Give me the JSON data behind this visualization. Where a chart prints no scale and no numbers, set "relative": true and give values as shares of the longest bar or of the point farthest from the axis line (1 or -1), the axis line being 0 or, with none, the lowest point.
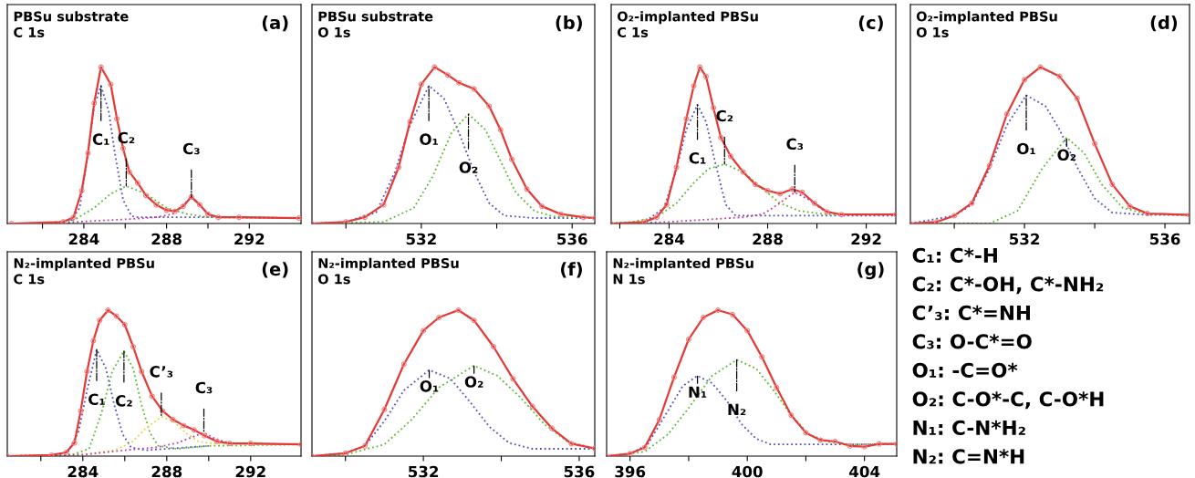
{
  "chart_data": [
    {
      "type": "line",
      "relative": true,
      "title": "PBSu substrate",
      "subtitle": "C 1s",
      "tick_labels": "x",
      "xlim": [
        280.3,
        294.5
      ],
      "xticks": [
        {
          "value": 282,
          "label": null
        },
        284,
        {
          "value": 286,
          "label": null
        },
        288,
        {
          "value": 290,
          "label": null
        },
        292
      ],
      "annotations": [
        "(a)",
        {
          "text": "C₁",
          "x": 284.83,
          "y": 0.88
        },
        {
          "text": "C₂",
          "x": 286.05,
          "y": 0.24
        },
        {
          "text": "C₃",
          "x": 289.2,
          "y": 0.17
        }
      ],
      "series": [
        {
          "color": "#e53935",
          "marker": "circle",
          "line_style": "solid",
          "x": [
            280.5,
            283,
            283.5,
            283.9,
            284.2,
            284.5,
            284.83,
            285.3,
            285.6,
            285.9,
            286.2,
            286.6,
            287,
            287.5,
            288,
            288.4,
            288.8,
            289.2,
            289.6,
            290,
            290.5,
            291.5,
            294.4
          ],
          "values": [
            0,
            0.01,
            0.04,
            0.21,
            0.45,
            0.77,
            1.0,
            0.89,
            0.67,
            0.48,
            0.33,
            0.26,
            0.18,
            0.12,
            0.085,
            0.078,
            0.11,
            0.17,
            0.12,
            0.06,
            0.04,
            0.04,
            0.035
          ]
        },
        {
          "color": "#5050c8",
          "marker": "none",
          "line_style": "dotted",
          "x": [
            280.5,
            283.3,
            283.8,
            284.2,
            284.5,
            284.83,
            285.2,
            285.5,
            285.9,
            286.3,
            286.5,
            290,
            294.4
          ],
          "values": [
            0,
            0,
            0.1,
            0.45,
            0.75,
            0.88,
            0.72,
            0.45,
            0.15,
            0.05,
            0.04,
            0.04,
            0.035
          ]
        },
        {
          "color": "#5cb82e",
          "marker": "none",
          "line_style": "dotted",
          "x": [
            280.5,
            282,
            283.5,
            284.5,
            285.3,
            286.05,
            287,
            288,
            289,
            290,
            294.4
          ],
          "values": [
            0,
            0,
            0.02,
            0.1,
            0.19,
            0.24,
            0.19,
            0.1,
            0.06,
            0.04,
            0.035
          ]
        },
        {
          "color": "#c83ca8",
          "marker": "none",
          "line_style": "dotted",
          "x": [
            280.5,
            283,
            285,
            286.5,
            287.5,
            288.3,
            288.8,
            289.2,
            289.6,
            290.1,
            291,
            294.4
          ],
          "values": [
            0,
            0.005,
            0.02,
            0.03,
            0.04,
            0.06,
            0.12,
            0.17,
            0.12,
            0.05,
            0.04,
            0.035
          ]
        }
      ]
    },
    {
      "type": "line",
      "relative": true,
      "title": "PBSu substrate",
      "subtitle": "O 1s",
      "tick_labels": "x",
      "xlim": [
        529.1,
        536.6
      ],
      "xticks": [
        {
          "value": 530,
          "label": null
        },
        532,
        {
          "value": 534,
          "label": null
        },
        536
      ],
      "annotations": [
        "(b)",
        {
          "text": "O₁",
          "x": 532.2,
          "y": 0.88
        },
        {
          "text": "O₂",
          "x": 533.25,
          "y": 0.7
        }
      ],
      "series": [
        {
          "color": "#e53935",
          "marker": "circle",
          "line_style": "solid",
          "x": [
            529.1,
            530,
            530.5,
            531,
            531.4,
            531.7,
            532,
            532.35,
            532.7,
            533,
            533.4,
            533.8,
            534.1,
            534.4,
            534.8,
            535.2,
            535.7,
            536.3,
            536.6
          ],
          "values": [
            0,
            0.01,
            0.04,
            0.12,
            0.36,
            0.65,
            0.89,
            1.0,
            0.95,
            0.9,
            0.86,
            0.75,
            0.6,
            0.41,
            0.22,
            0.11,
            0.06,
            0.04,
            0.035
          ]
        },
        {
          "color": "#5050c8",
          "marker": "none",
          "line_style": "dotted",
          "x": [
            529.1,
            530,
            530.8,
            531.3,
            531.7,
            532.2,
            532.6,
            533,
            533.4,
            533.8,
            534.2,
            535,
            536.6
          ],
          "values": [
            0,
            0.01,
            0.07,
            0.33,
            0.63,
            0.88,
            0.8,
            0.58,
            0.33,
            0.13,
            0.05,
            0.035,
            0.035
          ]
        },
        {
          "color": "#5cb82e",
          "marker": "none",
          "line_style": "dotted",
          "x": [
            529.1,
            531,
            531.8,
            532.3,
            532.8,
            533.25,
            533.7,
            534.1,
            534.5,
            535,
            535.5,
            536.6
          ],
          "values": [
            0,
            0.01,
            0.1,
            0.3,
            0.58,
            0.7,
            0.6,
            0.4,
            0.2,
            0.08,
            0.045,
            0.035
          ]
        }
      ]
    },
    {
      "type": "line",
      "relative": true,
      "title": "O₂-implanted PBSu",
      "subtitle": "C 1s",
      "tick_labels": "x",
      "xlim": [
        281.65,
        293.2
      ],
      "xticks": [
        {
          "value": 282,
          "label": null
        },
        284,
        {
          "value": 286,
          "label": null
        },
        288,
        {
          "value": 290,
          "label": null
        },
        292
      ],
      "annotations": [
        "(c)",
        {
          "text": "C₁",
          "x": 285.15,
          "y": 0.76
        },
        {
          "text": "C₂",
          "x": 286.25,
          "y": 0.38
        },
        {
          "text": "C₃",
          "x": 289.1,
          "y": 0.2
        }
      ],
      "series": [
        {
          "color": "#e53935",
          "marker": "circle",
          "line_style": "solid",
          "x": [
            281.65,
            283,
            283.5,
            283.9,
            284.3,
            284.7,
            285,
            285.25,
            285.5,
            285.8,
            286.1,
            286.5,
            287,
            287.5,
            288,
            288.5,
            289,
            289.4,
            289.9,
            290.4,
            291,
            293.2
          ],
          "values": [
            0,
            0.01,
            0.04,
            0.12,
            0.36,
            0.67,
            0.88,
            1.0,
            0.94,
            0.74,
            0.55,
            0.43,
            0.33,
            0.25,
            0.21,
            0.19,
            0.22,
            0.2,
            0.13,
            0.075,
            0.057,
            0.057
          ]
        },
        {
          "color": "#5050c8",
          "marker": "none",
          "line_style": "dotted",
          "x": [
            281.65,
            283,
            283.8,
            284.3,
            284.7,
            285.15,
            285.5,
            285.9,
            286.3,
            286.7,
            287.5,
            293.2
          ],
          "values": [
            0,
            0.01,
            0.1,
            0.35,
            0.6,
            0.76,
            0.65,
            0.37,
            0.12,
            0.05,
            0.05,
            0.05
          ]
        },
        {
          "color": "#5cb82e",
          "marker": "none",
          "line_style": "dotted",
          "x": [
            281.65,
            282.5,
            283.5,
            284.3,
            285,
            285.6,
            286.25,
            287,
            287.8,
            288.5,
            289.3,
            290.3,
            293.2
          ],
          "values": [
            0,
            0.01,
            0.04,
            0.13,
            0.26,
            0.35,
            0.38,
            0.33,
            0.22,
            0.13,
            0.08,
            0.06,
            0.057
          ]
        },
        {
          "color": "#c83ca8",
          "marker": "none",
          "line_style": "dotted",
          "x": [
            281.65,
            284,
            286,
            287,
            287.8,
            288.4,
            289.1,
            289.7,
            290.3
          ],
          "values": [
            0,
            0.01,
            0.03,
            0.04,
            0.06,
            0.12,
            0.2,
            0.15,
            0.08
          ]
        }
      ]
    },
    {
      "type": "line",
      "relative": true,
      "title": "O₂-implanted PBSu",
      "subtitle": "O 1s",
      "tick_labels": "x",
      "xlim": [
        528.75,
        536.7
      ],
      "xticks": [
        {
          "value": 530,
          "label": null
        },
        532,
        {
          "value": 534,
          "label": null
        },
        536
      ],
      "annotations": [
        "(d)",
        {
          "text": "O₁",
          "x": 532.05,
          "y": 0.82
        },
        {
          "text": "O₂",
          "x": 533.2,
          "y": 0.55
        }
      ],
      "series": [
        {
          "color": "#e53935",
          "marker": "circle",
          "line_style": "solid",
          "x": [
            528.75,
            529.5,
            530,
            530.5,
            531,
            531.5,
            532,
            532.45,
            533,
            533.5,
            534,
            534.5,
            535,
            535.5,
            536.7
          ],
          "values": [
            0,
            0.01,
            0.05,
            0.13,
            0.37,
            0.7,
            0.92,
            1.0,
            0.94,
            0.8,
            0.51,
            0.25,
            0.11,
            0.064,
            0.055
          ]
        },
        {
          "color": "#5050c8",
          "marker": "none",
          "line_style": "dotted",
          "x": [
            528.75,
            530,
            530.5,
            531,
            531.5,
            532.05,
            532.6,
            533,
            533.5,
            534,
            534.5,
            535.5,
            536.7
          ],
          "values": [
            0,
            0.05,
            0.12,
            0.35,
            0.63,
            0.82,
            0.75,
            0.6,
            0.36,
            0.16,
            0.07,
            0.055,
            0.055
          ]
        },
        {
          "color": "#5cb82e",
          "marker": "none",
          "line_style": "dotted",
          "x": [
            528.75,
            531,
            531.8,
            532.5,
            533.2,
            533.7,
            534.2,
            534.8,
            535.5,
            536.7
          ],
          "values": [
            0,
            0,
            0.08,
            0.35,
            0.55,
            0.45,
            0.25,
            0.1,
            0.06,
            0.055
          ]
        }
      ]
    },
    {
      "type": "line",
      "relative": true,
      "title": "N₂-implanted PBSu",
      "subtitle": "C 1s",
      "tick_labels": "x",
      "xlim": [
        280.4,
        294.4
      ],
      "xticks": [
        {
          "value": 282,
          "label": null
        },
        284,
        {
          "value": 286,
          "label": null
        },
        288,
        {
          "value": 290,
          "label": null
        },
        292
      ],
      "annotations": [
        "(e)",
        {
          "text": "C₁",
          "x": 284.66,
          "y": 0.73
        },
        {
          "text": "C₂",
          "x": 285.96,
          "y": 0.72
        },
        {
          "text": "C’₃",
          "x": 287.74,
          "y": 0.27
        },
        {
          "text": "C₃",
          "x": 289.77,
          "y": 0.16
        }
      ],
      "series": [
        {
          "color": "#e53935",
          "marker": "circle",
          "line_style": "solid",
          "x": [
            280.4,
            282.5,
            283.2,
            283.6,
            283.9,
            284.2,
            284.5,
            284.8,
            285.2,
            285.6,
            286,
            286.4,
            286.8,
            287.3,
            287.8,
            288.3,
            288.8,
            289.3,
            289.8,
            290.4,
            291,
            292,
            294.4
          ],
          "values": [
            0,
            0.007,
            0.025,
            0.09,
            0.31,
            0.58,
            0.79,
            0.93,
            1.0,
            0.96,
            0.9,
            0.75,
            0.58,
            0.41,
            0.31,
            0.25,
            0.21,
            0.18,
            0.14,
            0.1,
            0.087,
            0.087,
            0.08
          ]
        },
        {
          "color": "#5050c8",
          "marker": "none",
          "line_style": "dotted",
          "x": [
            280.4,
            282.5,
            283.3,
            283.8,
            284.2,
            284.66,
            285.1,
            285.5,
            285.9,
            286.3,
            287,
            288,
            289,
            290
          ],
          "values": [
            0,
            0.005,
            0.03,
            0.17,
            0.45,
            0.73,
            0.6,
            0.35,
            0.15,
            0.06,
            0.04,
            0.05,
            0.06,
            0.07
          ]
        },
        {
          "color": "#5cb82e",
          "marker": "none",
          "line_style": "dotted",
          "x": [
            280.4,
            283.5,
            284.3,
            284.9,
            285.4,
            285.96,
            286.4,
            286.8,
            287.2,
            287.6,
            288.5,
            290,
            294.4
          ],
          "values": [
            0,
            0.01,
            0.05,
            0.3,
            0.58,
            0.72,
            0.6,
            0.35,
            0.16,
            0.07,
            0.05,
            0.07,
            0.08
          ]
        },
        {
          "color": "#e6d43a",
          "marker": "none",
          "line_style": "dotted",
          "x": [
            280.4,
            284,
            285.5,
            286.3,
            287,
            287.74,
            288.3,
            288.9,
            289.5,
            290.3,
            294.4
          ],
          "values": [
            0,
            0.01,
            0.04,
            0.09,
            0.19,
            0.27,
            0.24,
            0.16,
            0.1,
            0.085,
            0.08
          ]
        },
        {
          "color": "#c83ca8",
          "marker": "none",
          "line_style": "dotted",
          "x": [
            280.4,
            284,
            286,
            287.5,
            288.5,
            289.2,
            289.77,
            290.3,
            291,
            294.4
          ],
          "values": [
            0,
            0.01,
            0.04,
            0.06,
            0.09,
            0.13,
            0.16,
            0.12,
            0.087,
            0.08
          ]
        }
      ]
    },
    {
      "type": "line",
      "relative": true,
      "title": "N₂-implanted PBSu",
      "subtitle": "O 1s",
      "tick_labels": "x",
      "xlim": [
        529.14,
        536.4
      ],
      "xticks": [
        {
          "value": 530,
          "label": null
        },
        532,
        {
          "value": 534,
          "label": null
        },
        536
      ],
      "annotations": [
        "(f)",
        {
          "text": "O₁",
          "x": 532.15,
          "y": 0.59
        },
        {
          "text": "O₂",
          "x": 533.3,
          "y": 0.62
        }
      ],
      "series": [
        {
          "color": "#e53935",
          "marker": "circle",
          "line_style": "solid",
          "x": [
            529.14,
            530,
            530.5,
            531,
            531.5,
            532,
            532.4,
            532.9,
            533.3,
            533.8,
            534.3,
            534.8,
            535.3,
            535.8,
            536.4
          ],
          "values": [
            0,
            0.02,
            0.07,
            0.32,
            0.63,
            0.86,
            0.95,
            1.0,
            0.93,
            0.75,
            0.53,
            0.34,
            0.19,
            0.085,
            0.053
          ]
        },
        {
          "color": "#5050c8",
          "marker": "none",
          "line_style": "dotted",
          "x": [
            529.14,
            530,
            530.5,
            531,
            531.5,
            532.15,
            532.7,
            533.2,
            533.7,
            534.2,
            534.8,
            536.4
          ],
          "values": [
            0,
            0.02,
            0.07,
            0.24,
            0.45,
            0.59,
            0.53,
            0.37,
            0.2,
            0.09,
            0.05,
            0.05
          ]
        },
        {
          "color": "#5cb82e",
          "marker": "none",
          "line_style": "dotted",
          "x": [
            529.14,
            530,
            531,
            531.7,
            532.4,
            533.3,
            533.9,
            534.5,
            535.1,
            535.7,
            536.4
          ],
          "values": [
            0,
            0.01,
            0.08,
            0.25,
            0.47,
            0.62,
            0.55,
            0.4,
            0.22,
            0.1,
            0.053
          ]
        }
      ]
    },
    {
      "type": "line",
      "relative": true,
      "title": "N₂-implanted PBSu",
      "subtitle": "N 1s",
      "tick_labels": "x",
      "xlim": [
        395.2,
        405.1
      ],
      "xticks": [
        396,
        {
          "value": 398,
          "label": null
        },
        400,
        {
          "value": 402,
          "label": null
        },
        404
      ],
      "annotations": [
        "(g)",
        {
          "text": "N₁",
          "x": 398.3,
          "y": 0.55
        },
        {
          "text": "N₂",
          "x": 399.64,
          "y": 0.66
        }
      ],
      "series": [
        {
          "color": "#e53935",
          "marker": "circle",
          "line_style": "solid",
          "x": [
            395.2,
            396,
            396.5,
            397,
            397.5,
            398,
            398.5,
            399,
            399.5,
            400,
            400.5,
            401,
            401.5,
            402,
            402.5,
            403,
            403.5,
            404,
            404.5,
            405.1
          ],
          "values": [
            0,
            0.017,
            0.06,
            0.25,
            0.54,
            0.8,
            0.95,
            1.0,
            0.97,
            0.86,
            0.68,
            0.47,
            0.28,
            0.16,
            0.11,
            0.1,
            0.07,
            0.065,
            0.084,
            0.084
          ]
        },
        {
          "color": "#5050c8",
          "marker": "none",
          "line_style": "dotted",
          "x": [
            395.2,
            396,
            396.6,
            397.2,
            397.8,
            398.3,
            398.8,
            399.3,
            399.8,
            400.3,
            400.8,
            401.5,
            405.1
          ],
          "values": [
            0,
            0.015,
            0.08,
            0.28,
            0.48,
            0.55,
            0.5,
            0.38,
            0.22,
            0.12,
            0.08,
            0.08,
            0.08
          ]
        },
        {
          "color": "#5cb82e",
          "marker": "none",
          "line_style": "dotted",
          "x": [
            395.2,
            396.5,
            397.3,
            398,
            398.8,
            399.64,
            400.3,
            400.9,
            401.5,
            402.1,
            402.7,
            403.5,
            405.1
          ],
          "values": [
            0,
            0.03,
            0.15,
            0.33,
            0.55,
            0.66,
            0.6,
            0.45,
            0.28,
            0.15,
            0.1,
            0.08,
            0.084
          ]
        }
      ]
    },
    {
      "type": "other",
      "annotations": [
        "C₁: C*-H",
        "C₂: C*-OH, C*-NH₂",
        "C’₃: C*=NH",
        "C₃: O-C*=O",
        "O₁: -C=O*",
        "O₂: C-O*-C, C-O*H",
        "N₁: C-N*H₂",
        "N₂: C=N*H"
      ]
    }
  ]
}
